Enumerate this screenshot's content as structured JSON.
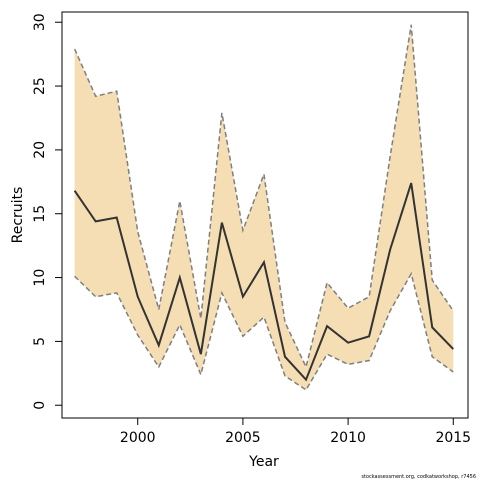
{
  "chart_data": {
    "type": "band-line",
    "xlabel": "Year",
    "ylabel": "Recruits",
    "footnote": "stockassessment.org, codkatworkshop, r7456",
    "x": [
      1997,
      1998,
      1999,
      2000,
      2001,
      2002,
      2003,
      2004,
      2005,
      2006,
      2007,
      2008,
      2009,
      2010,
      2011,
      2012,
      2013,
      2014,
      2015
    ],
    "series": [
      {
        "color": "#333333",
        "values": [
          16.8,
          14.4,
          14.7,
          8.5,
          4.7,
          10.0,
          4.0,
          14.3,
          8.5,
          11.2,
          3.8,
          2.0,
          6.2,
          4.9,
          5.4,
          12.2,
          17.4,
          6.1,
          4.4
        ]
      }
    ],
    "band_color": "#f5deb3",
    "band_edge_color": "#7f7f7f",
    "lower": [
      10.1,
      8.5,
      8.8,
      5.5,
      3.0,
      6.3,
      2.4,
      8.8,
      5.4,
      6.9,
      2.3,
      1.2,
      4.0,
      3.2,
      3.5,
      7.4,
      10.3,
      3.8,
      2.6
    ],
    "upper": [
      27.9,
      24.2,
      24.6,
      13.6,
      7.5,
      16.0,
      6.8,
      22.9,
      13.7,
      18.1,
      6.5,
      3.0,
      9.6,
      7.6,
      8.5,
      19.5,
      29.8,
      9.8,
      7.4
    ],
    "xlim": [
      1996.4,
      2015.7
    ],
    "xticks": [
      2000,
      2005,
      2010,
      2015
    ],
    "ylim": [
      -1.0,
      30.8
    ],
    "yticks": [
      0,
      5,
      10,
      15,
      20,
      25,
      30
    ]
  }
}
